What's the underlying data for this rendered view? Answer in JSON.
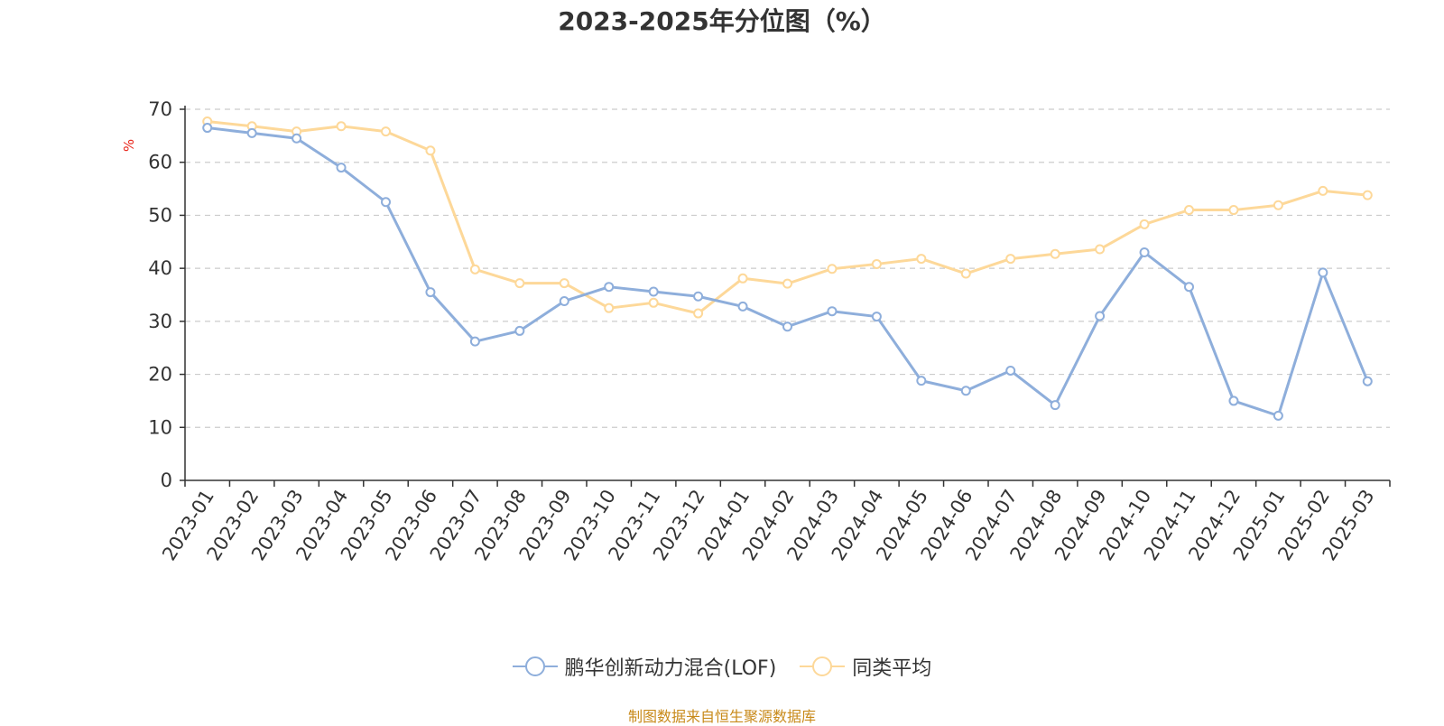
{
  "chart_data": {
    "type": "line",
    "title": "2023-2025年分位图（%）",
    "ylabel": "%",
    "xlabel": "",
    "ylim": [
      0,
      70
    ],
    "yticks": [
      0,
      10,
      20,
      30,
      40,
      50,
      60,
      70
    ],
    "grid": true,
    "legend_position": "bottom",
    "categories": [
      "2023-01",
      "2023-02",
      "2023-03",
      "2023-04",
      "2023-05",
      "2023-06",
      "2023-07",
      "2023-08",
      "2023-09",
      "2023-10",
      "2023-11",
      "2023-12",
      "2024-01",
      "2024-02",
      "2024-03",
      "2024-04",
      "2024-05",
      "2024-06",
      "2024-07",
      "2024-08",
      "2024-09",
      "2024-10",
      "2024-11",
      "2024-12",
      "2025-01",
      "2025-02",
      "2025-03"
    ],
    "series": [
      {
        "name": "鹏华创新动力混合(LOF)",
        "color": "#8eaedb",
        "values": [
          66.5,
          65.5,
          64.5,
          59,
          52.5,
          35.5,
          26.2,
          28.2,
          33.8,
          36.5,
          35.6,
          34.7,
          32.8,
          29,
          31.9,
          30.9,
          18.8,
          16.9,
          20.7,
          14.2,
          31,
          43,
          36.5,
          15,
          12.2,
          39.2,
          18.7
        ]
      },
      {
        "name": "同类平均",
        "color": "#fdd899",
        "values": [
          67.7,
          66.8,
          65.8,
          66.8,
          65.8,
          62.2,
          39.8,
          37.2,
          37.2,
          32.5,
          33.5,
          31.5,
          38.1,
          37.1,
          39.9,
          40.8,
          41.8,
          39,
          41.8,
          42.7,
          43.6,
          48.3,
          51,
          51,
          51.9,
          54.6,
          53.8
        ]
      }
    ]
  },
  "source_note": "制图数据来自恒生聚源数据库"
}
